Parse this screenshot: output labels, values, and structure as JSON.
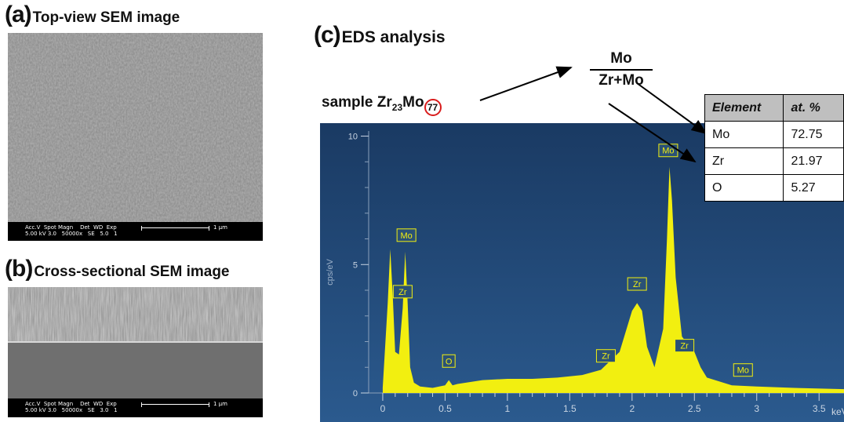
{
  "panel_a": {
    "letter": "(a)",
    "title": "Top-view SEM image",
    "databar": {
      "line1": "Acc.V  Spot Magn    Det  WD  Exp",
      "line2": "5.00 kV 3.0   50000x   SE   5.0   1",
      "scale": "1 µm"
    }
  },
  "panel_b": {
    "letter": "(b)",
    "title": "Cross-sectional SEM image",
    "databar": {
      "line1": "Acc.V  Spot Magn    Det  WD  Exp",
      "line2": "5.00 kV 3.0   50000x   SE   3.0   1",
      "scale": "1 µm"
    }
  },
  "panel_c": {
    "letter": "(c)",
    "title": "EDS analysis",
    "sample_prefix": "sample Zr",
    "sample_sub1": "23",
    "sample_mid": "Mo",
    "sample_sub2": "77",
    "fraction_numerator": "Mo",
    "fraction_denominator": "Zr+Mo",
    "table": {
      "headers": [
        "Element",
        "at. %"
      ],
      "rows": [
        {
          "element": "Mo",
          "value": "72.75"
        },
        {
          "element": "Zr",
          "value": "21.97"
        },
        {
          "element": "O",
          "value": "5.27"
        }
      ]
    }
  },
  "colors": {
    "plot_bg_top": "#1a3a63",
    "plot_bg_bottom": "#2b5a8e",
    "spectrum": "#f2ef10",
    "marker_ring": "#d91c1c"
  },
  "chart_data": {
    "type": "area",
    "ylabel": "cps/eV",
    "xlabel": "keV",
    "x_ticks": [
      "0",
      "0.5",
      "1",
      "1.5",
      "2",
      "2.5",
      "3",
      "3.5"
    ],
    "y_ticks": [
      "0",
      "5",
      "10"
    ],
    "xlim": [
      -0.05,
      3.7
    ],
    "ylim": [
      0,
      10.2
    ],
    "series": [
      {
        "x": [
          0.0,
          0.04,
          0.06,
          0.08,
          0.1,
          0.13,
          0.16,
          0.18,
          0.2,
          0.22,
          0.25,
          0.3,
          0.4,
          0.5,
          0.53,
          0.56,
          0.6,
          0.8,
          1.0,
          1.2,
          1.4,
          1.6,
          1.75,
          1.9,
          2.0,
          2.04,
          2.08,
          2.12,
          2.18,
          2.25,
          2.28,
          2.3,
          2.32,
          2.35,
          2.4,
          2.46,
          2.5,
          2.55,
          2.6,
          2.8,
          3.0,
          3.3,
          3.7
        ],
        "y": [
          0.2,
          3.5,
          5.6,
          3.8,
          1.6,
          1.5,
          3.3,
          5.5,
          3.5,
          1.0,
          0.4,
          0.25,
          0.2,
          0.3,
          0.5,
          0.3,
          0.35,
          0.5,
          0.55,
          0.55,
          0.6,
          0.7,
          0.9,
          1.6,
          3.2,
          3.5,
          3.2,
          1.8,
          1.0,
          2.5,
          6.0,
          8.8,
          7.5,
          4.5,
          2.2,
          1.8,
          1.6,
          1.0,
          0.6,
          0.3,
          0.25,
          0.2,
          0.15
        ]
      }
    ],
    "peak_labels": [
      {
        "label": "Mo",
        "x": 0.19,
        "y": 5.9
      },
      {
        "label": "Zr",
        "x": 0.16,
        "y": 3.7
      },
      {
        "label": "O",
        "x": 0.53,
        "y": 1.0
      },
      {
        "label": "Zr",
        "x": 1.79,
        "y": 1.2
      },
      {
        "label": "Zr",
        "x": 2.04,
        "y": 4.0
      },
      {
        "label": "Mo",
        "x": 2.29,
        "y": 9.2
      },
      {
        "label": "Zr",
        "x": 2.42,
        "y": 1.6
      },
      {
        "label": "Mo",
        "x": 2.89,
        "y": 0.65
      }
    ]
  }
}
